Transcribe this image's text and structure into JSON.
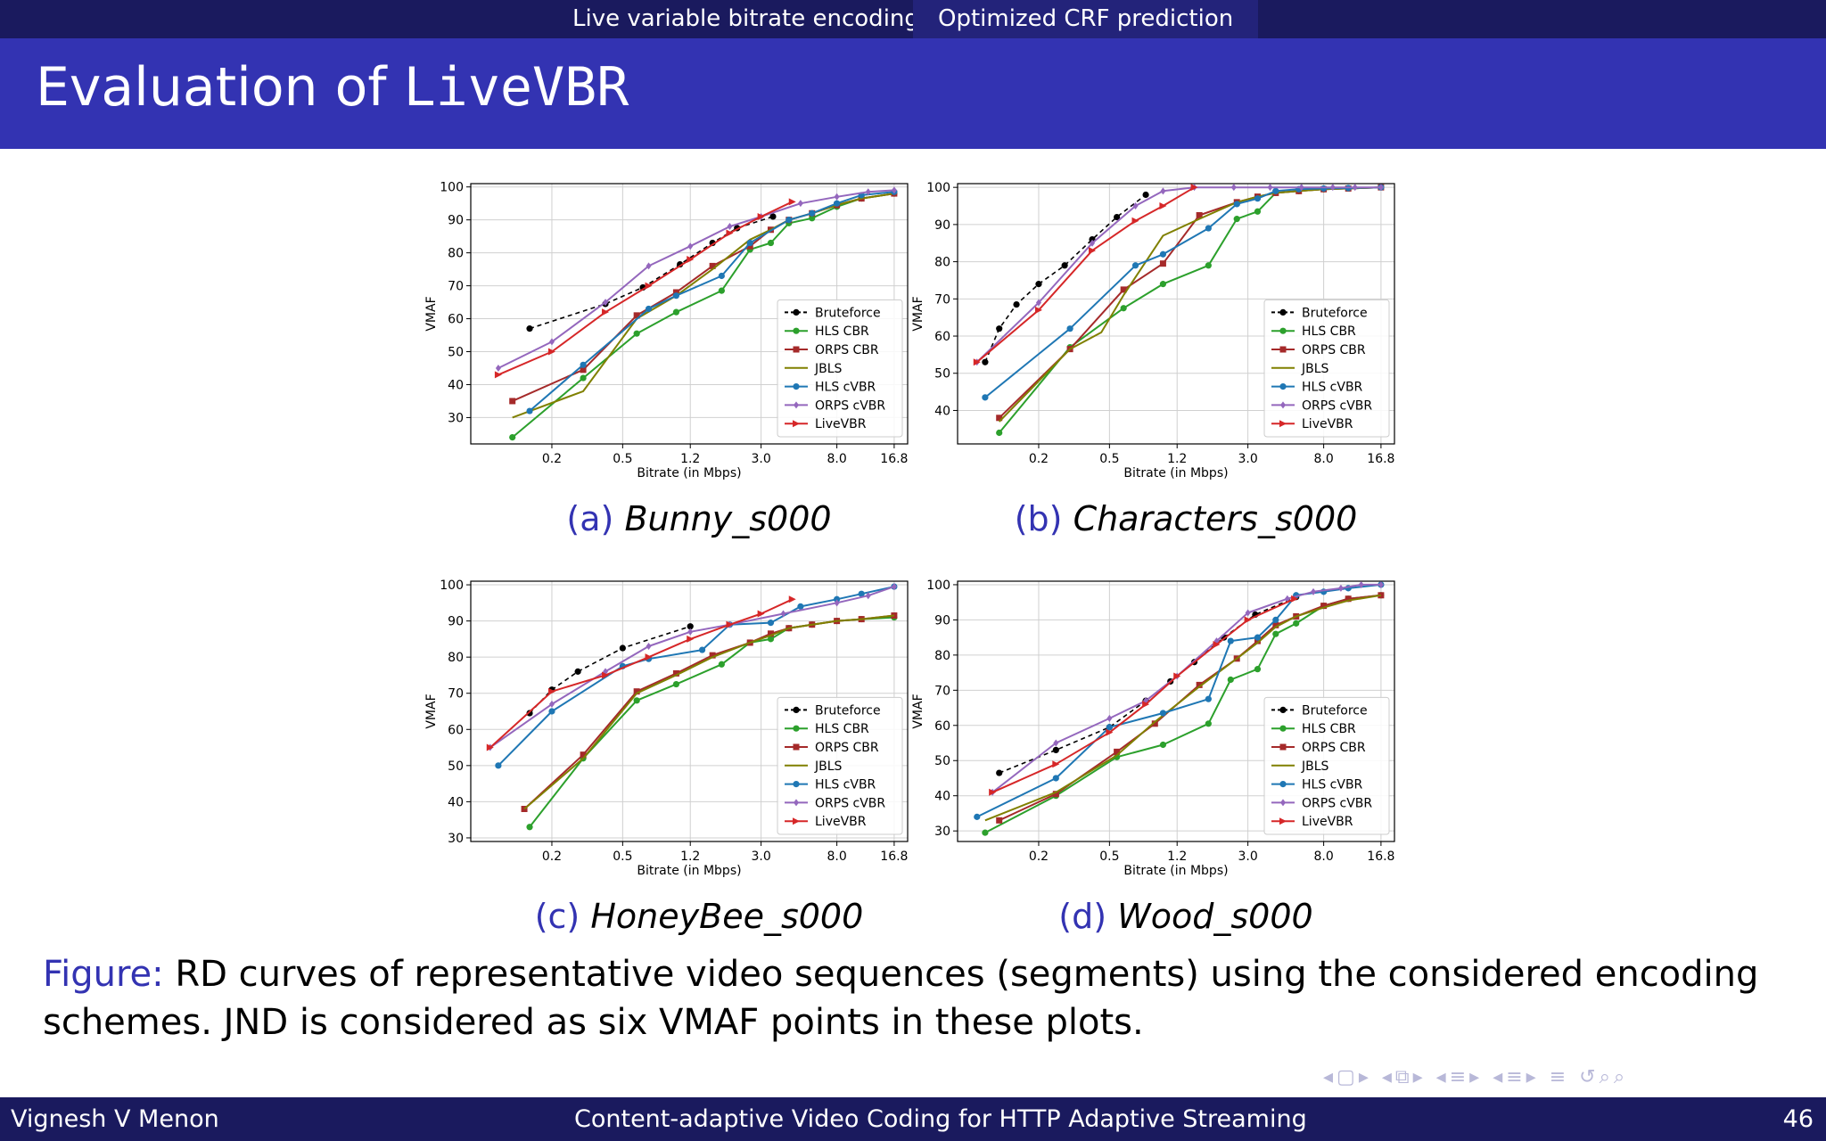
{
  "header": {
    "tabs": [
      "Live variable bitrate encoding",
      "Optimized CRF prediction"
    ],
    "active_tab": 1,
    "title_prefix": "Evaluation of ",
    "title_mono": "LiveVBR"
  },
  "footer": {
    "author": "Vignesh V Menon",
    "talk_title": "Content-adaptive Video Coding for HTTP Adaptive Streaming",
    "page": "46"
  },
  "figure_caption": {
    "label": "Figure:",
    "text": " RD curves of representative video sequences (segments) using the considered encoding schemes. JND is considered as six VMAF points in these plots."
  },
  "colors": {
    "Bruteforce": "#000000",
    "HLS CBR": "#2ca02c",
    "ORPS CBR": "#a52a2a",
    "JBLS": "#808000",
    "HLS cVBR": "#1f77b4",
    "ORPS cVBR": "#9467bd",
    "LiveVBR": "#d62728"
  },
  "chart_data": [
    {
      "type": "line",
      "panel_label": "(a)",
      "panel_name": "Bunny_s000",
      "xlabel": "Bitrate (in Mbps)",
      "ylabel": "VMAF",
      "xscale": "log",
      "xticks": [
        0.2,
        0.5,
        1.2,
        3.0,
        8.0,
        16.8
      ],
      "xtick_labels": [
        "0.2",
        "0.5",
        "1.2",
        "3.0",
        "8.0",
        "16.8"
      ],
      "xlim": [
        0.07,
        20
      ],
      "yticks": [
        30,
        40,
        50,
        60,
        70,
        80,
        90,
        100
      ],
      "ylim": [
        22,
        101
      ],
      "legend": "lower right",
      "grid": true,
      "series": [
        {
          "name": "Bruteforce",
          "style": "dashed",
          "marker": "circle",
          "x": [
            0.15,
            0.4,
            0.65,
            1.05,
            1.6,
            2.2,
            3.5
          ],
          "y": [
            57,
            64.5,
            69.5,
            76.5,
            83,
            87.5,
            91
          ]
        },
        {
          "name": "HLS CBR",
          "style": "solid",
          "marker": "circle",
          "x": [
            0.12,
            0.3,
            0.6,
            1.0,
            1.8,
            2.6,
            3.4,
            4.3,
            5.8,
            8.0,
            11.0,
            16.8
          ],
          "y": [
            24,
            42,
            55.5,
            62,
            68.5,
            81,
            83,
            89,
            90.5,
            94,
            96.5,
            98
          ]
        },
        {
          "name": "ORPS CBR",
          "style": "solid",
          "marker": "square",
          "x": [
            0.12,
            0.3,
            0.6,
            1.0,
            1.6,
            2.6,
            3.4,
            4.3,
            5.8,
            8.0,
            11.0,
            16.8
          ],
          "y": [
            35,
            44.5,
            61,
            68,
            76,
            82,
            87,
            90,
            92,
            94.5,
            96.5,
            98
          ]
        },
        {
          "name": "JBLS",
          "style": "solid",
          "marker": "none",
          "x": [
            0.12,
            0.3,
            0.6,
            1.0,
            1.6,
            2.6,
            3.4,
            4.3,
            5.8,
            8.0,
            11.0,
            16.8
          ],
          "y": [
            30,
            38,
            60,
            67,
            75,
            84,
            87,
            90,
            92,
            94.5,
            96.5,
            98
          ]
        },
        {
          "name": "HLS cVBR",
          "style": "solid",
          "marker": "circle",
          "x": [
            0.15,
            0.3,
            0.7,
            1.0,
            1.8,
            2.6,
            4.3,
            5.8,
            8.0,
            11.0,
            16.8
          ],
          "y": [
            32,
            46,
            63,
            67,
            73,
            83,
            90,
            92,
            95,
            97.5,
            98.5
          ]
        },
        {
          "name": "ORPS cVBR",
          "style": "solid",
          "marker": "diamond",
          "x": [
            0.1,
            0.2,
            0.4,
            0.7,
            1.2,
            2.0,
            3.0,
            5.0,
            8.0,
            12.0,
            16.8
          ],
          "y": [
            45,
            53,
            65,
            76,
            82,
            88,
            91,
            95,
            97,
            98.5,
            99
          ]
        },
        {
          "name": "LiveVBR",
          "style": "solid",
          "marker": "triangle",
          "x": [
            0.1,
            0.2,
            0.4,
            0.7,
            1.2,
            2.0,
            3.0,
            4.5
          ],
          "y": [
            43,
            50,
            62,
            70,
            78,
            86,
            91,
            95.5
          ]
        }
      ]
    },
    {
      "type": "line",
      "panel_label": "(b)",
      "panel_name": "Characters_s000",
      "xlabel": "Bitrate (in Mbps)",
      "ylabel": "VMAF",
      "xscale": "log",
      "xticks": [
        0.2,
        0.5,
        1.2,
        3.0,
        8.0,
        16.8
      ],
      "xtick_labels": [
        "0.2",
        "0.5",
        "1.2",
        "3.0",
        "8.0",
        "16.8"
      ],
      "xlim": [
        0.07,
        20
      ],
      "yticks": [
        40,
        50,
        60,
        70,
        80,
        90,
        100
      ],
      "ylim": [
        31,
        101
      ],
      "legend": "lower right",
      "grid": true,
      "series": [
        {
          "name": "Bruteforce",
          "style": "dashed",
          "marker": "circle",
          "x": [
            0.1,
            0.12,
            0.15,
            0.2,
            0.28,
            0.4,
            0.55,
            0.8
          ],
          "y": [
            53,
            62,
            68.5,
            74,
            79,
            86,
            92,
            98
          ]
        },
        {
          "name": "HLS CBR",
          "style": "solid",
          "marker": "circle",
          "x": [
            0.12,
            0.3,
            0.6,
            1.0,
            1.8,
            2.6,
            3.4,
            4.3,
            5.8,
            8.0,
            11.0,
            16.8
          ],
          "y": [
            34,
            57,
            67.5,
            74,
            79,
            91.5,
            93.5,
            98.5,
            99,
            99.5,
            99.7,
            100
          ]
        },
        {
          "name": "ORPS CBR",
          "style": "solid",
          "marker": "square",
          "x": [
            0.12,
            0.3,
            0.6,
            1.0,
            1.6,
            2.6,
            3.4,
            4.3,
            5.8,
            8.0,
            11.0,
            16.8
          ],
          "y": [
            38,
            56.5,
            72.5,
            79.5,
            92.5,
            96,
            97.5,
            98.5,
            99,
            99.5,
            99.7,
            100
          ]
        },
        {
          "name": "JBLS",
          "style": "solid",
          "marker": "none",
          "x": [
            0.12,
            0.3,
            0.45,
            0.6,
            1.0,
            1.6,
            2.6,
            3.4,
            4.3,
            5.8,
            8.0,
            16.8
          ],
          "y": [
            37,
            56.5,
            61,
            71,
            87,
            91.5,
            96,
            97.5,
            98.5,
            99,
            99.5,
            100
          ]
        },
        {
          "name": "HLS cVBR",
          "style": "solid",
          "marker": "circle",
          "x": [
            0.1,
            0.3,
            0.7,
            1.0,
            1.8,
            2.6,
            3.4,
            4.3,
            5.8,
            8.0,
            11.0,
            16.8
          ],
          "y": [
            43.5,
            62,
            79,
            82,
            89,
            95.5,
            97,
            99,
            99.5,
            99.7,
            99.8,
            100
          ]
        },
        {
          "name": "ORPS cVBR",
          "style": "solid",
          "marker": "diamond",
          "x": [
            0.09,
            0.2,
            0.4,
            0.7,
            1.0,
            1.5,
            2.5,
            4.0,
            6.0,
            9.0,
            12.0,
            16.8
          ],
          "y": [
            53,
            69,
            85,
            95,
            99,
            100,
            100,
            100,
            100,
            100,
            100,
            100
          ]
        },
        {
          "name": "LiveVBR",
          "style": "solid",
          "marker": "triangle",
          "x": [
            0.09,
            0.2,
            0.4,
            0.7,
            1.0,
            1.5
          ],
          "y": [
            53,
            67,
            83,
            91,
            95,
            100
          ]
        }
      ]
    },
    {
      "type": "line",
      "panel_label": "(c)",
      "panel_name": "HoneyBee_s000",
      "xlabel": "Bitrate (in Mbps)",
      "ylabel": "VMAF",
      "xscale": "log",
      "xticks": [
        0.2,
        0.5,
        1.2,
        3.0,
        8.0,
        16.8
      ],
      "xtick_labels": [
        "0.2",
        "0.5",
        "1.2",
        "3.0",
        "8.0",
        "16.8"
      ],
      "xlim": [
        0.07,
        20
      ],
      "yticks": [
        30,
        40,
        50,
        60,
        70,
        80,
        90,
        100
      ],
      "ylim": [
        29,
        101
      ],
      "legend": "lower right",
      "grid": true,
      "series": [
        {
          "name": "Bruteforce",
          "style": "dashed",
          "marker": "circle",
          "x": [
            0.15,
            0.2,
            0.28,
            0.5,
            1.2
          ],
          "y": [
            64.5,
            71,
            76,
            82.5,
            88.5
          ]
        },
        {
          "name": "HLS CBR",
          "style": "solid",
          "marker": "circle",
          "x": [
            0.15,
            0.3,
            0.6,
            1.0,
            1.8,
            2.6,
            3.4,
            4.3,
            5.8,
            8.0,
            11.0,
            16.8
          ],
          "y": [
            33,
            52,
            68,
            72.5,
            78,
            84,
            85,
            88,
            89,
            90,
            90.5,
            91
          ]
        },
        {
          "name": "ORPS CBR",
          "style": "solid",
          "marker": "square",
          "x": [
            0.14,
            0.3,
            0.6,
            1.0,
            1.6,
            2.6,
            3.4,
            4.3,
            5.8,
            8.0,
            11.0,
            16.8
          ],
          "y": [
            38,
            53,
            70.5,
            75.5,
            80.5,
            84,
            86.5,
            88,
            89,
            90,
            90.5,
            91.5
          ]
        },
        {
          "name": "JBLS",
          "style": "solid",
          "marker": "none",
          "x": [
            0.14,
            0.3,
            0.6,
            1.0,
            1.6,
            2.6,
            3.4,
            4.3,
            5.8,
            8.0,
            11.0,
            16.8
          ],
          "y": [
            38,
            52,
            70,
            75,
            80,
            84,
            86,
            88,
            89,
            90,
            90.5,
            91.5
          ]
        },
        {
          "name": "HLS cVBR",
          "style": "solid",
          "marker": "circle",
          "x": [
            0.1,
            0.2,
            0.5,
            0.7,
            1.4,
            2.0,
            3.4,
            5.0,
            8.0,
            11.0,
            16.8
          ],
          "y": [
            50,
            65,
            77.5,
            79.5,
            82,
            89,
            89.5,
            94,
            96,
            97.5,
            99.5
          ]
        },
        {
          "name": "ORPS cVBR",
          "style": "solid",
          "marker": "diamond",
          "x": [
            0.09,
            0.2,
            0.4,
            0.7,
            1.2,
            2.0,
            4.0,
            8.0,
            12.0,
            16.8
          ],
          "y": [
            55,
            67,
            76,
            83,
            87,
            89,
            92,
            95,
            97,
            99.5
          ]
        },
        {
          "name": "LiveVBR",
          "style": "solid",
          "marker": "triangle",
          "x": [
            0.09,
            0.2,
            0.4,
            0.7,
            1.2,
            2.0,
            3.0,
            4.5
          ],
          "y": [
            55,
            70.5,
            75,
            80,
            85,
            89,
            92,
            96
          ]
        }
      ]
    },
    {
      "type": "line",
      "panel_label": "(d)",
      "panel_name": "Wood_s000",
      "xlabel": "Bitrate (in Mbps)",
      "ylabel": "VMAF",
      "xscale": "log",
      "xticks": [
        0.2,
        0.5,
        1.2,
        3.0,
        8.0,
        16.8
      ],
      "xtick_labels": [
        "0.2",
        "0.5",
        "1.2",
        "3.0",
        "8.0",
        "16.8"
      ],
      "xlim": [
        0.07,
        20
      ],
      "yticks": [
        30,
        40,
        50,
        60,
        70,
        80,
        90,
        100
      ],
      "ylim": [
        27,
        101
      ],
      "legend": "lower right",
      "grid": true,
      "series": [
        {
          "name": "Bruteforce",
          "style": "dashed",
          "marker": "circle",
          "x": [
            0.12,
            0.25,
            0.5,
            0.8,
            1.1,
            1.5,
            2.2,
            3.3,
            5.6
          ],
          "y": [
            46.5,
            53,
            59.5,
            67,
            72.5,
            78,
            85,
            91.5,
            96.5
          ]
        },
        {
          "name": "HLS CBR",
          "style": "solid",
          "marker": "circle",
          "x": [
            0.1,
            0.25,
            0.55,
            1.0,
            1.8,
            2.4,
            3.4,
            4.3,
            5.6,
            8.0,
            11.0,
            16.8
          ],
          "y": [
            29.5,
            40,
            51,
            54.5,
            60.5,
            73,
            76,
            86,
            89,
            94,
            96,
            97
          ]
        },
        {
          "name": "ORPS CBR",
          "style": "solid",
          "marker": "square",
          "x": [
            0.12,
            0.25,
            0.55,
            0.9,
            1.6,
            2.6,
            3.4,
            4.3,
            5.6,
            8.0,
            11.0,
            16.8
          ],
          "y": [
            33,
            40.5,
            52.5,
            60.5,
            71.5,
            79,
            84,
            88.5,
            91,
            94,
            96,
            97
          ]
        },
        {
          "name": "JBLS",
          "style": "solid",
          "marker": "none",
          "x": [
            0.1,
            0.25,
            0.55,
            0.9,
            1.6,
            2.6,
            3.4,
            4.3,
            5.6,
            8.0,
            11.0,
            16.8
          ],
          "y": [
            33,
            41,
            51.5,
            61,
            71,
            79,
            83.5,
            88,
            91,
            93.5,
            95.5,
            97
          ]
        },
        {
          "name": "HLS cVBR",
          "style": "solid",
          "marker": "circle",
          "x": [
            0.09,
            0.25,
            0.5,
            1.0,
            1.8,
            2.4,
            3.4,
            4.3,
            5.6,
            8.0,
            11.0,
            16.8
          ],
          "y": [
            34,
            45,
            59.5,
            63.5,
            67.5,
            84,
            85,
            90,
            97,
            98,
            99,
            100
          ]
        },
        {
          "name": "ORPS cVBR",
          "style": "solid",
          "marker": "diamond",
          "x": [
            0.11,
            0.25,
            0.5,
            0.8,
            1.2,
            2.0,
            3.0,
            5.0,
            7.0,
            10.0,
            13.0,
            16.8
          ],
          "y": [
            41,
            55,
            62,
            67,
            74,
            84,
            92,
            96,
            98,
            99,
            100,
            100
          ]
        },
        {
          "name": "LiveVBR",
          "style": "solid",
          "marker": "triangle",
          "x": [
            0.11,
            0.25,
            0.5,
            0.8,
            1.2,
            2.0,
            3.0,
            5.5
          ],
          "y": [
            41,
            49,
            58,
            66,
            74,
            83,
            90,
            96
          ]
        }
      ]
    }
  ]
}
